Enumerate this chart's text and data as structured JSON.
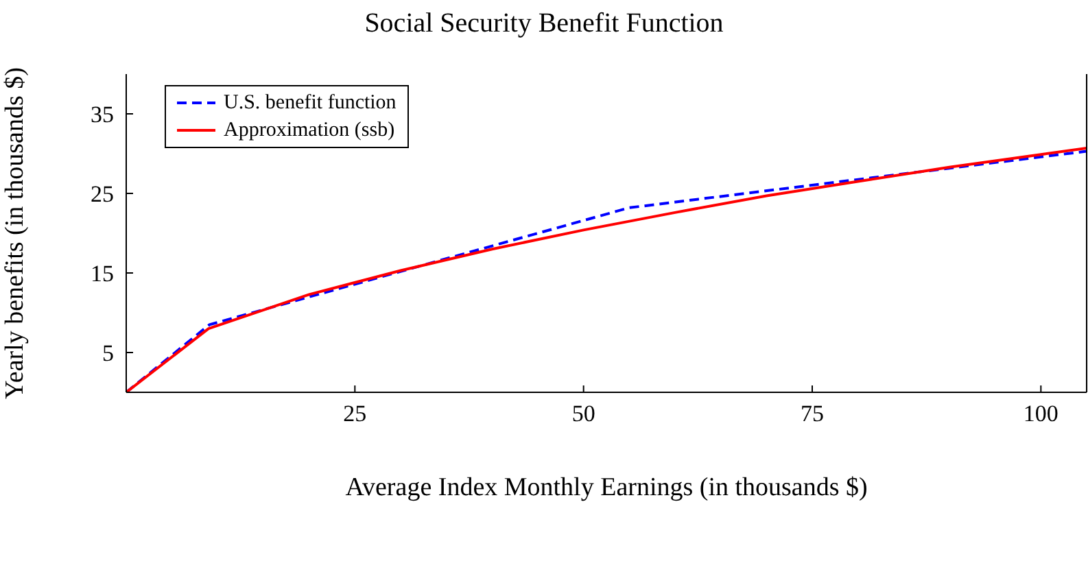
{
  "chart_data": {
    "type": "line",
    "title": "Social Security Benefit Function",
    "xlabel": "Average Index Monthly Earnings (in thousands $)",
    "ylabel": "Yearly benefits (in thousands $)",
    "xlim": [
      0,
      105
    ],
    "xticks": [
      25,
      50,
      75,
      100
    ],
    "ylim": [
      0,
      40
    ],
    "yticks": [
      5,
      15,
      25,
      35
    ],
    "grid": false,
    "legend": "top left",
    "marker": "none",
    "series": [
      {
        "name": "U.S. benefit function",
        "color": "#0000ff",
        "line_style": "dashed",
        "x": [
          0,
          9.1,
          55,
          105
        ],
        "values": [
          0,
          8.5,
          23.2,
          30.3
        ]
      },
      {
        "name": "Approximation (ssb)",
        "color": "#ff0000",
        "line_style": "solid",
        "x": [
          0,
          9,
          20,
          30,
          40,
          50,
          60,
          70,
          80,
          90,
          100,
          105
        ],
        "values": [
          0,
          8,
          12.3,
          15.3,
          18,
          20.4,
          22.6,
          24.7,
          26.5,
          28.3,
          29.9,
          30.7
        ]
      }
    ]
  }
}
